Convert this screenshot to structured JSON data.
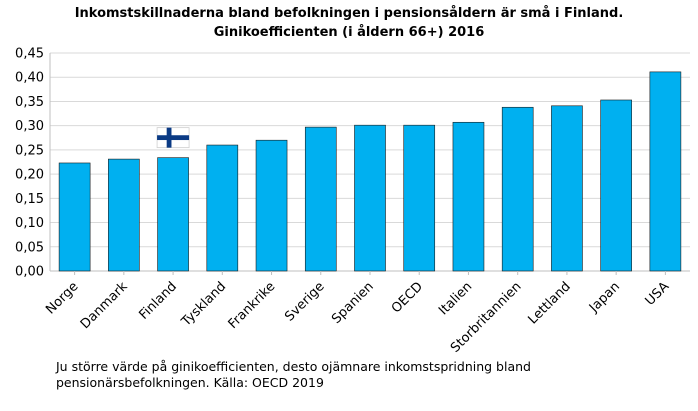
{
  "chart_data": {
    "type": "bar",
    "title": "Inkomstskillnaderna bland befolkningen i pensionsåldern är små i Finland.",
    "subtitle": "Ginikoefficienten (i åldern 66+) 2016",
    "categories": [
      "Norge",
      "Danmark",
      "Finland",
      "Tyskland",
      "Frankrike",
      "Sverige",
      "Spanien",
      "OECD",
      "Italien",
      "Storbritannien",
      "Lettland",
      "Japan",
      "USA"
    ],
    "values": [
      0.223,
      0.231,
      0.234,
      0.26,
      0.27,
      0.297,
      0.301,
      0.301,
      0.307,
      0.338,
      0.341,
      0.353,
      0.411
    ],
    "y_ticks": [
      "0,00",
      "0,05",
      "0,10",
      "0,15",
      "0,20",
      "0,25",
      "0,30",
      "0,35",
      "0,40",
      "0,45"
    ],
    "ylim": [
      0,
      0.45
    ],
    "grid": true,
    "bar_color": "#00B0F0",
    "highlight": {
      "category": "Finland",
      "marker": "finnish-flag"
    },
    "flag_colors": {
      "cross": "#0A3A84",
      "field": "#FFFFFF"
    }
  },
  "caption": {
    "line1": "Ju större värde på ginikoefficienten, desto ojämnare inkomstspridning bland",
    "line2": "pensionärsbefolkningen. Källa: OECD 2019"
  }
}
